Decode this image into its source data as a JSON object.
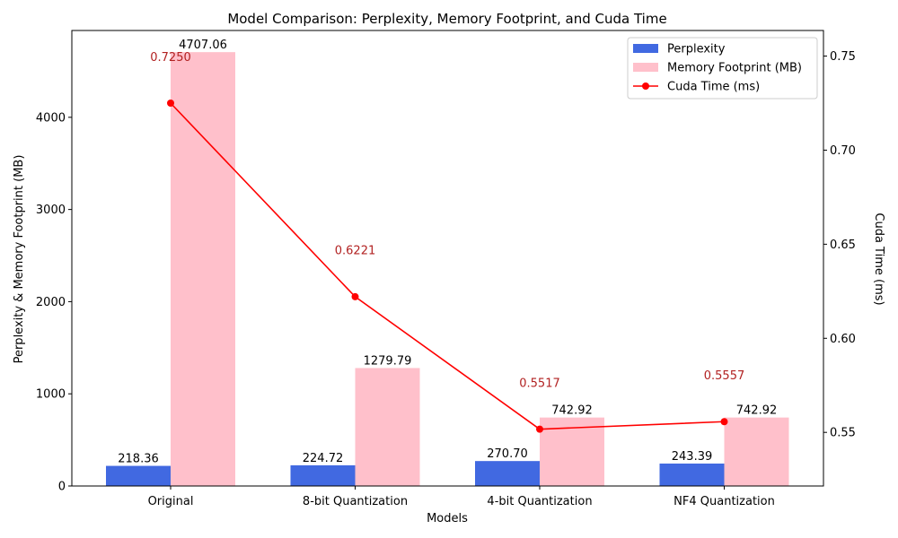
{
  "chart_data": {
    "type": "bar",
    "title": "Model Comparison: Perplexity, Memory Footprint, and Cuda Time",
    "xlabel": "Models",
    "ylabel": "Perplexity & Memory Footprint (MB)",
    "y2label": "Cuda Time (ms)",
    "categories": [
      "Original",
      "8-bit Quantization",
      "4-bit Quantization",
      "NF4 Quantization"
    ],
    "ylim": [
      0,
      4942
    ],
    "yticks": [
      0,
      1000,
      2000,
      3000,
      4000
    ],
    "y2lim": [
      0.5215,
      0.7636
    ],
    "y2ticks": [
      "0.55",
      "0.60",
      "0.65",
      "0.70",
      "0.75"
    ],
    "legend_position": "top-right",
    "series": [
      {
        "name": "Perplexity",
        "kind": "bar",
        "axis": "left",
        "color": "#4169e1",
        "values": [
          218.36,
          224.72,
          270.7,
          243.39
        ],
        "labels": [
          "218.36",
          "224.72",
          "270.70",
          "243.39"
        ]
      },
      {
        "name": "Memory Footprint (MB)",
        "kind": "bar",
        "axis": "left",
        "color": "#ffc0cb",
        "values": [
          4707.06,
          1279.79,
          742.92,
          742.92
        ],
        "labels": [
          "4707.06",
          "1279.79",
          "742.92",
          "742.92"
        ]
      },
      {
        "name": "Cuda Time (ms)",
        "kind": "line",
        "axis": "right",
        "color": "#ff0000",
        "label_color": "#b22222",
        "values": [
          0.725,
          0.6221,
          0.5517,
          0.5557
        ],
        "labels": [
          "0.7250",
          "0.6221",
          "0.5517",
          "0.5557"
        ]
      }
    ]
  }
}
